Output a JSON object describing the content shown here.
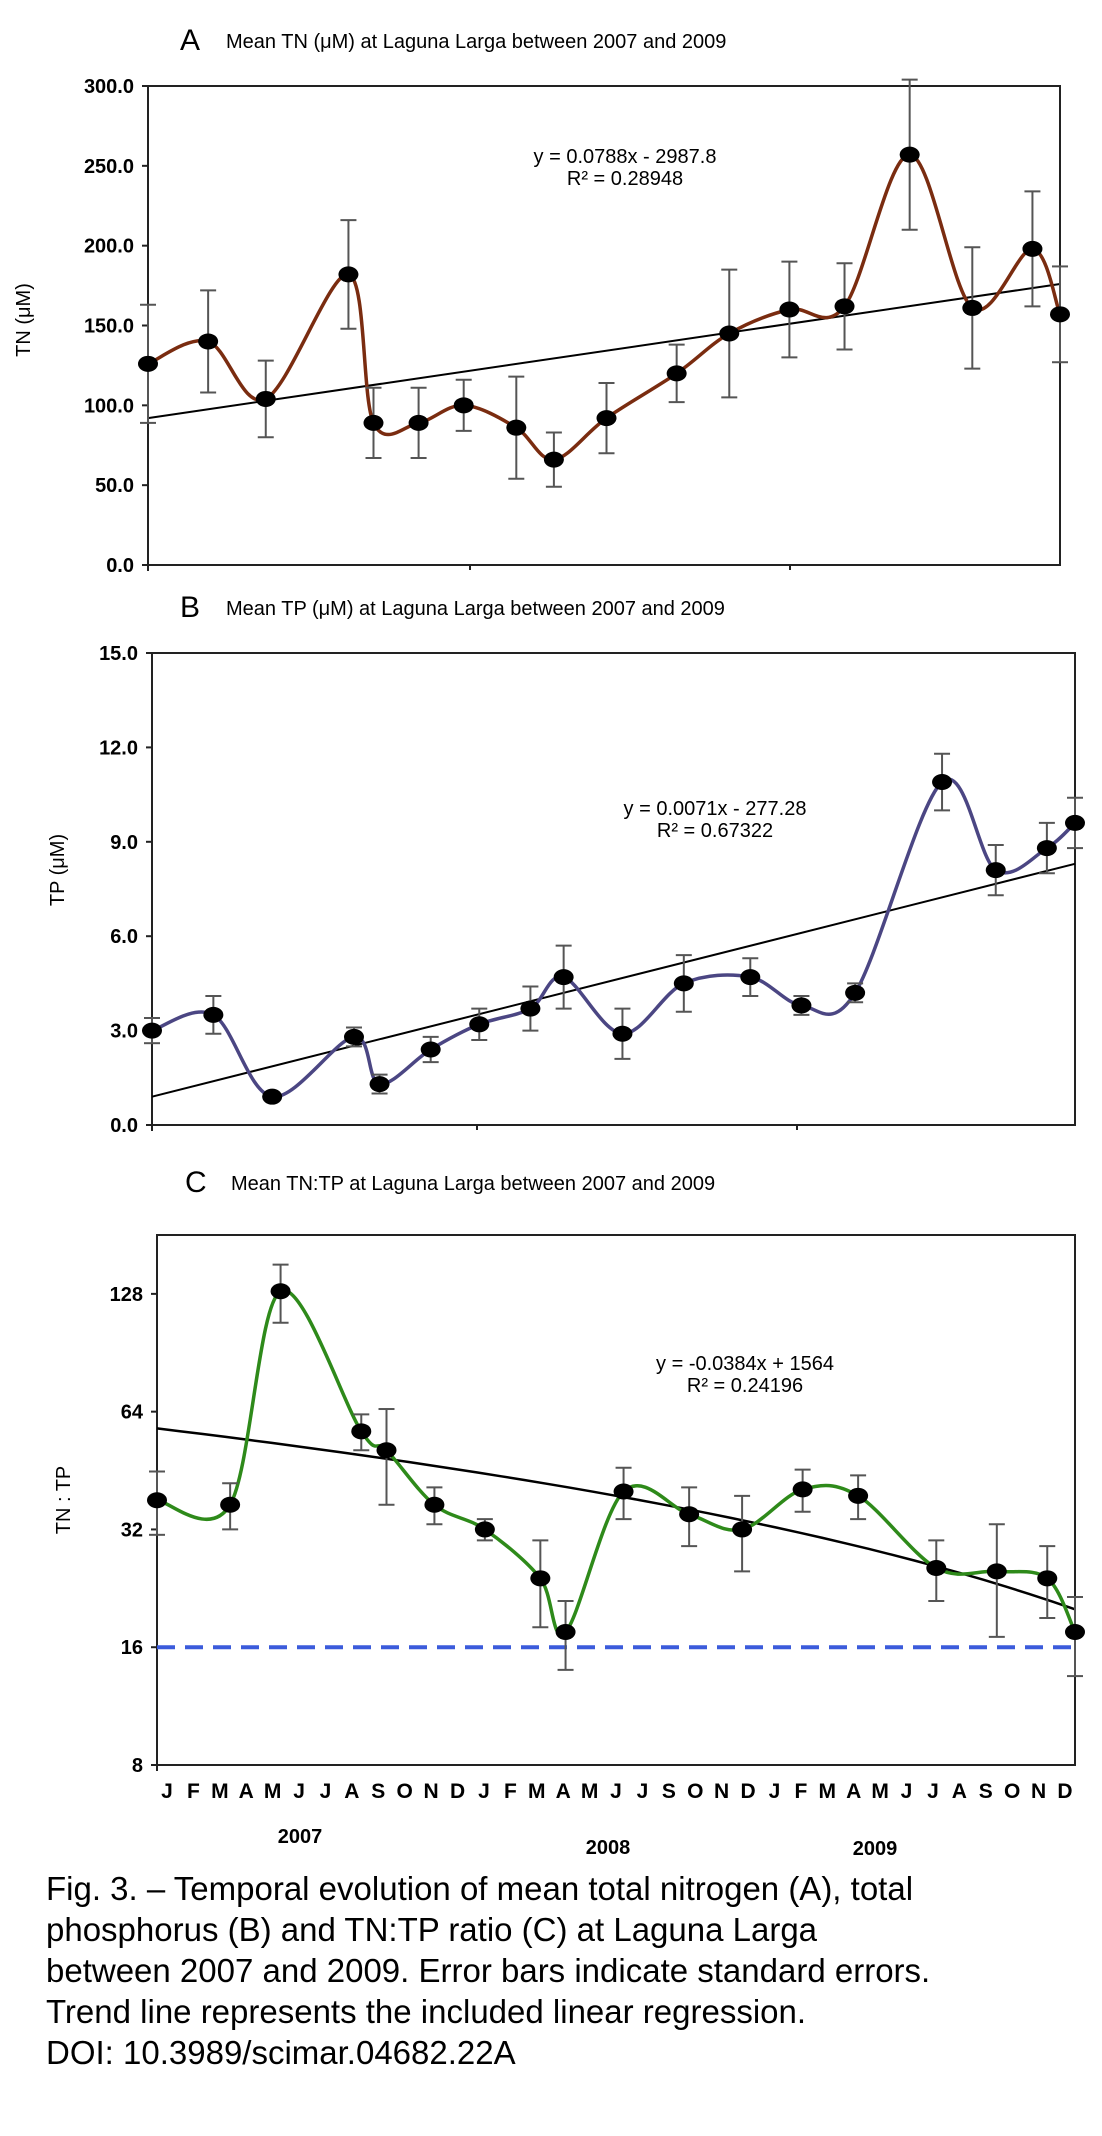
{
  "figure": {
    "caption_lines": [
      "Fig. 3. – Temporal evolution of mean total nitrogen (A), total",
      "phosphorus (B) and TN:TP ratio (C) at Laguna Larga",
      "between 2007 and 2009. Error bars indicate standard errors.",
      "Trend line represents the included linear regression.",
      "DOI: 10.3989/scimar.04682.22A"
    ]
  },
  "chart_data": [
    {
      "type": "line",
      "panel": "A",
      "title": "Mean TN (μM) at Laguna Larga between 2007 and 2009",
      "ylabel": "TN (μM)",
      "ylim": [
        0,
        300
      ],
      "yticks": [
        "0.0",
        "50.0",
        "100.0",
        "150.0",
        "200.0",
        "250.0",
        "300.0"
      ],
      "x": [
        0.0,
        2.4,
        4.7,
        8.0,
        9.0,
        10.8,
        12.6,
        14.7,
        16.2,
        18.3,
        21.1,
        23.2,
        25.6,
        27.8,
        30.4,
        32.9,
        35.3,
        36.4
      ],
      "series": [
        {
          "values": [
            126,
            140,
            104,
            182,
            89,
            89,
            100,
            86,
            66,
            92,
            120,
            145,
            160,
            162,
            257,
            161,
            198,
            157
          ],
          "errors": [
            37,
            32,
            24,
            34,
            22,
            22,
            16,
            32,
            17,
            22,
            18,
            40,
            30,
            27,
            47,
            38,
            36,
            30
          ],
          "color": "#7a2c10"
        }
      ],
      "trendline": {
        "equation": "y = 0.0788x - 2987.8",
        "r2": "R² = 0.28948",
        "start": 92,
        "end": 176,
        "color": "#000000"
      },
      "grid": false
    },
    {
      "type": "line",
      "panel": "B",
      "title": "Mean TP (μM) at Laguna Larga between 2007 and 2009",
      "ylabel": "TP (μM)",
      "ylim": [
        0,
        15
      ],
      "yticks": [
        "0.0",
        "3.0",
        "6.0",
        "9.0",
        "12.0",
        "15.0"
      ],
      "x": [
        0.0,
        2.4,
        4.7,
        7.9,
        8.9,
        10.9,
        12.8,
        14.8,
        16.1,
        18.4,
        20.8,
        23.4,
        25.4,
        27.5,
        30.9,
        33.0,
        35.0,
        36.1
      ],
      "series": [
        {
          "values": [
            3.0,
            3.5,
            0.9,
            2.8,
            1.3,
            2.4,
            3.2,
            3.7,
            4.7,
            2.9,
            4.5,
            4.7,
            3.8,
            4.2,
            10.9,
            8.1,
            8.8,
            9.6
          ],
          "errors": [
            0.4,
            0.6,
            0.1,
            0.3,
            0.3,
            0.4,
            0.5,
            0.7,
            1.0,
            0.8,
            0.9,
            0.6,
            0.3,
            0.3,
            0.9,
            0.8,
            0.8,
            0.8
          ],
          "color": "#4b4683"
        }
      ],
      "trendline": {
        "equation": "y = 0.0071x - 277.28",
        "r2": "R² = 0.67322",
        "start": 0.9,
        "end": 8.3,
        "color": "#000000"
      },
      "grid": false
    },
    {
      "type": "line",
      "panel": "C",
      "title": "Mean TN:TP at Laguna Larga between 2007 and 2009",
      "ylabel": "TN : TP",
      "yscale": "log2",
      "ylim": [
        8,
        181
      ],
      "yticks": [
        "8",
        "16",
        "32",
        "64",
        "128"
      ],
      "x": [
        0.0,
        2.9,
        4.9,
        8.1,
        9.1,
        11.0,
        13.0,
        15.2,
        16.2,
        18.5,
        21.1,
        23.2,
        25.6,
        27.8,
        30.9,
        33.3,
        35.3,
        36.4
      ],
      "x_month_labels": [
        "J",
        "F",
        "M",
        "A",
        "M",
        "J",
        "J",
        "A",
        "S",
        "O",
        "N",
        "D",
        "J",
        "F",
        "M",
        "A",
        "M",
        "J",
        "J",
        "S",
        "O",
        "N",
        "D",
        "J",
        "F",
        "M",
        "A",
        "M",
        "J",
        "J",
        "A",
        "S",
        "O",
        "N",
        "D"
      ],
      "x_year_labels": [
        "2007",
        "2008",
        "2009"
      ],
      "series": [
        {
          "values": [
            38,
            37,
            130,
            57,
            51,
            37,
            32,
            24,
            17.5,
            40,
            35,
            32,
            40.5,
            39,
            25.5,
            25,
            24,
            17.5
          ],
          "errors": [
            7,
            5,
            22,
            6,
            14,
            4,
            2,
            6,
            3.5,
            6,
            6,
            7,
            5,
            5,
            4.5,
            8,
            5,
            4
          ],
          "color": "#2e8a1a"
        }
      ],
      "trendline": {
        "equation": "y = -0.0384x + 1564",
        "r2": "R² = 0.24196",
        "start": 58,
        "end": 20,
        "color": "#000000"
      },
      "reference_line": {
        "value": 16,
        "style": "dashed",
        "color": "#3b5bdb"
      },
      "grid": false
    }
  ]
}
